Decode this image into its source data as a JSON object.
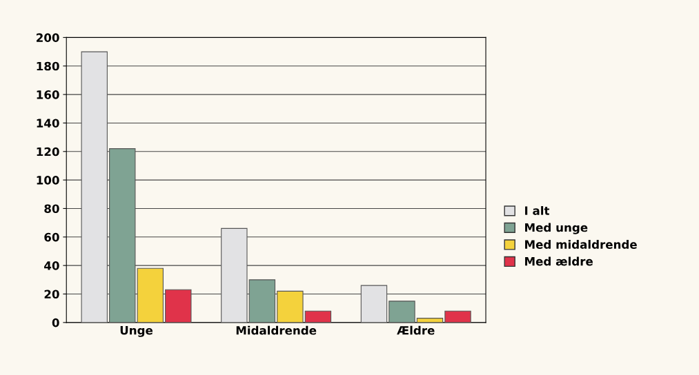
{
  "chart_data": {
    "type": "bar",
    "categories": [
      "Unge",
      "Midaldrende",
      "Ældre"
    ],
    "series": [
      {
        "name": "I alt",
        "color": "#e2e2e4",
        "values": [
          190,
          66,
          26
        ]
      },
      {
        "name": "Med unge",
        "color": "#7fa393",
        "values": [
          122,
          30,
          15
        ]
      },
      {
        "name": "Med midaldrende",
        "color": "#f4d23c",
        "values": [
          38,
          22,
          3
        ]
      },
      {
        "name": "Med ældre",
        "color": "#e0334a",
        "values": [
          23,
          8,
          8
        ]
      }
    ],
    "ylim": [
      0,
      200
    ],
    "yticks": [
      0,
      20,
      40,
      60,
      80,
      100,
      120,
      140,
      160,
      180,
      200
    ],
    "grid": "y",
    "legend": "right"
  }
}
